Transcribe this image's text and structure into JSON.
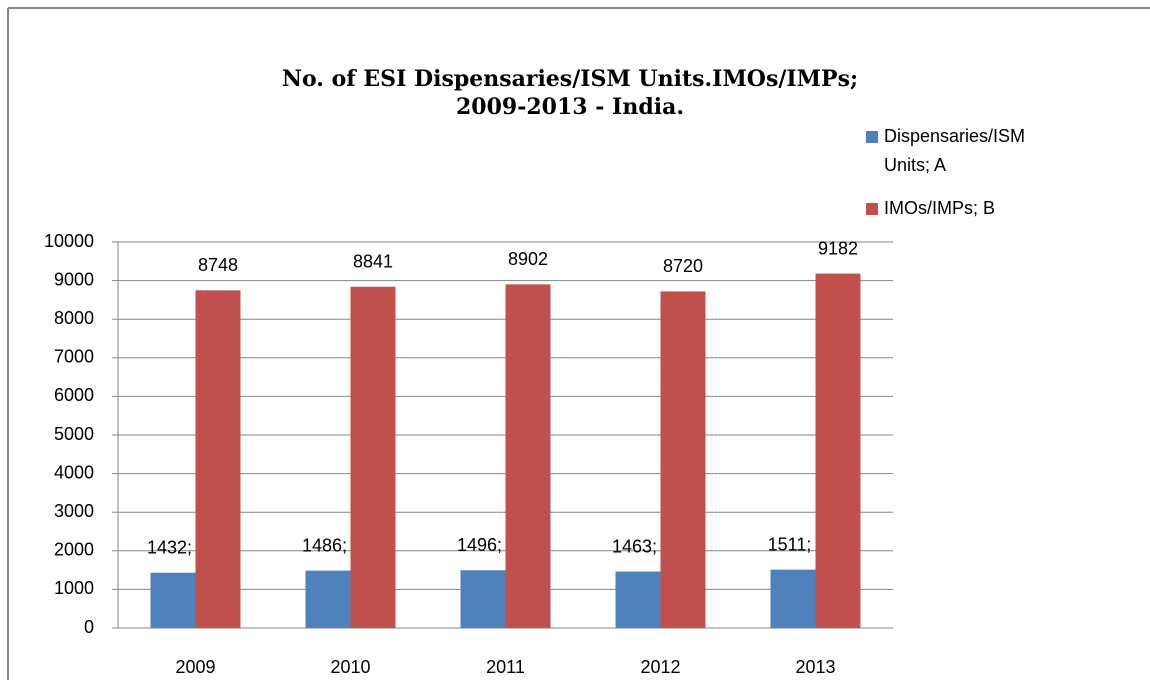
{
  "chart_data": {
    "type": "bar",
    "title": [
      "No. of ESI Dispensaries/ISM Units.IMOs/IMPs;",
      "2009-2013 - India."
    ],
    "categories": [
      "2009",
      "2010",
      "2011",
      "2012",
      "2013"
    ],
    "series": [
      {
        "name": "Dispensaries/ISM Units; A",
        "color": "#4f81bd",
        "values": [
          1432,
          1486,
          1496,
          1463,
          1511
        ],
        "value_labels": [
          "1432; A",
          "1486; A",
          "1496; A",
          "1463; A",
          "1511; A"
        ]
      },
      {
        "name": "IMOs/IMPs; B",
        "color": "#c0504d",
        "values": [
          8748,
          8841,
          8902,
          8720,
          9182
        ]
      }
    ],
    "ylim": [
      0,
      10000
    ],
    "yticks": [
      0,
      1000,
      2000,
      3000,
      4000,
      5000,
      6000,
      7000,
      8000,
      9000,
      10000
    ],
    "grid": true,
    "legend": "right"
  }
}
